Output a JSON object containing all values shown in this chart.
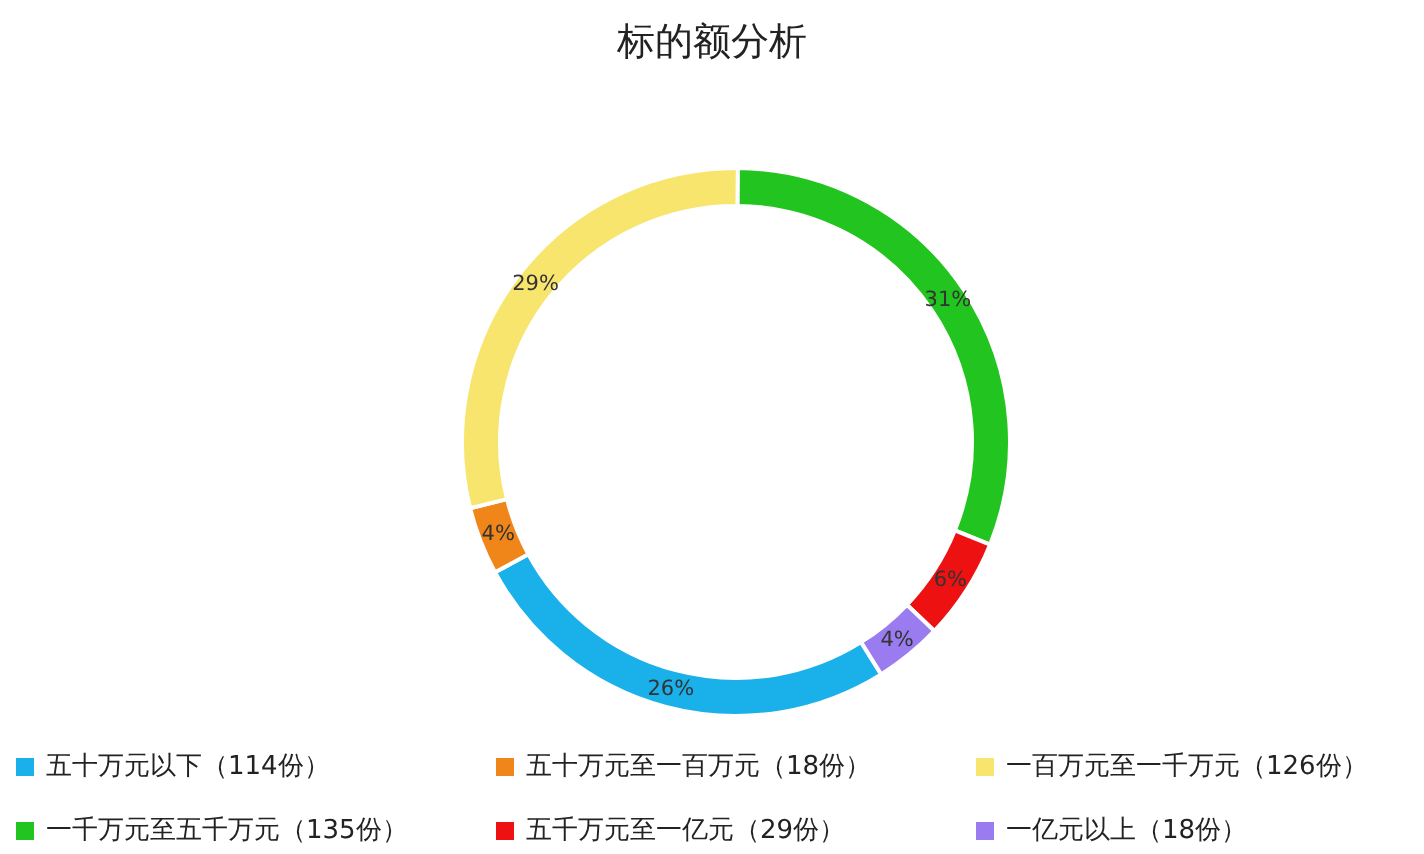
{
  "chart_data": {
    "type": "donut",
    "title": "标的额分析",
    "categories": [
      "五十万元以下（114份）",
      "五十万元至一百万元（18份）",
      "一百万元至一千万元（126份）",
      "一千万元至五千万元（135份）",
      "五千万元至一亿元（29份）",
      "一亿元以上（18份）"
    ],
    "values": [
      26,
      4,
      29,
      31,
      6,
      4
    ],
    "value_labels": [
      "26%",
      "4%",
      "29%",
      "31%",
      "6%",
      "4%"
    ],
    "colors": [
      "#1ab0ea",
      "#f08519",
      "#f7e56e",
      "#22c41f",
      "#ee1111",
      "#9a7cf0"
    ],
    "legend": "bottom"
  }
}
